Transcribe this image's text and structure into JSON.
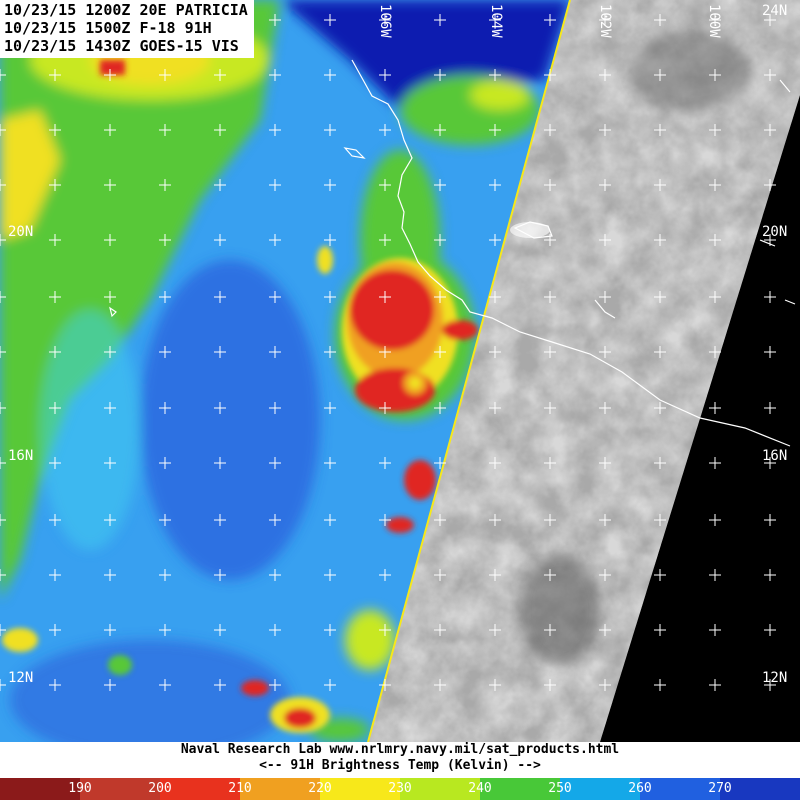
{
  "header": {
    "lines": [
      "10/23/15 1200Z 20E PATRICIA",
      "10/23/15 1500Z F-18 91H",
      "10/23/15 1430Z GOES-15 VIS"
    ]
  },
  "longitude_labels": [
    "106W",
    "104W",
    "102W",
    "100W"
  ],
  "latitude_labels": {
    "left": [
      "20N",
      "16N",
      "12N"
    ],
    "right": [
      "24N",
      "20N",
      "16N",
      "12N"
    ]
  },
  "footer": {
    "credit": "Naval Research Lab  www.nrlmry.navy.mil/sat_products.html",
    "legend_caption": "<--   91H Brightness Temp (Kelvin)   -->"
  },
  "colorbar": {
    "labels": [
      "190",
      "200",
      "210",
      "220",
      "230",
      "240",
      "250",
      "260",
      "270"
    ],
    "colors": [
      "#8b1a1a",
      "#c0392b",
      "#e8321e",
      "#f0a020",
      "#f7e81a",
      "#b8e820",
      "#48c838",
      "#14a8e8",
      "#2060e0",
      "#1838c0"
    ]
  },
  "palette": {
    "ocean_cold": "#0a1fb0",
    "deep_blue": "#2a52d8",
    "mid_blue": "#38a0f0",
    "cyan": "#40d0f0",
    "green": "#58c838",
    "yellow_green": "#c8e820",
    "yellow": "#f0e020",
    "orange": "#f0a020",
    "red": "#e02820",
    "dark_red": "#b01818",
    "vis_gray": "#b8b8b8"
  }
}
